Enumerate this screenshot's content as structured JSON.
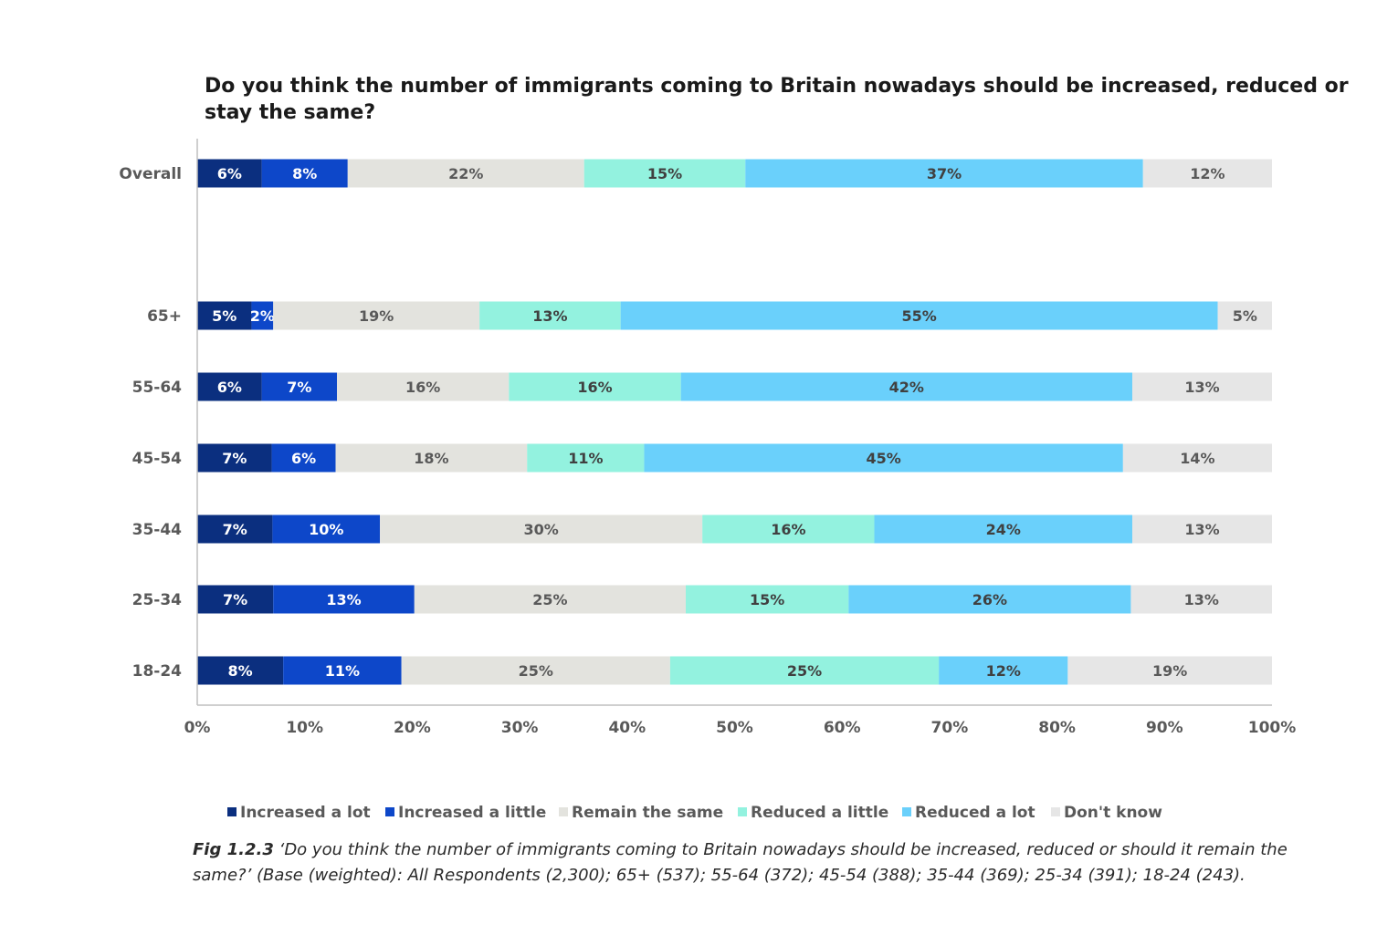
{
  "chart_data": {
    "type": "bar",
    "orientation": "horizontal",
    "stacked": true,
    "title_lines": [
      "Do you think the number of immigrants coming to Britain nowadays should be increased, reduced or",
      "stay the same?"
    ],
    "categories": [
      "Overall",
      "65+",
      "55-64",
      "45-54",
      "35-44",
      "25-34",
      "18-24"
    ],
    "series": [
      {
        "name": "Increased a lot",
        "color": "#0b2f7f",
        "label_color": "#ffffff",
        "values": [
          6,
          5,
          6,
          7,
          7,
          7,
          8
        ],
        "labels": [
          "6%",
          "5%",
          "6%",
          "7%",
          "7%",
          "7%",
          "8%"
        ]
      },
      {
        "name": "Increased a little",
        "color": "#0d47c9",
        "label_color": "#ffffff",
        "values": [
          8,
          2,
          7,
          6,
          10,
          13,
          11
        ],
        "labels": [
          "8%",
          "2%",
          "7%",
          "6%",
          "10%",
          "13%",
          "11%"
        ]
      },
      {
        "name": "Remain the same",
        "color": "#e3e3de",
        "label_color": "#595959",
        "values": [
          22,
          19,
          16,
          18,
          30,
          25,
          25
        ],
        "labels": [
          "22%",
          "19%",
          "16%",
          "18%",
          "30%",
          "25%",
          "25%"
        ]
      },
      {
        "name": "Reduced a little",
        "color": "#93f2df",
        "label_color": "#404040",
        "values": [
          15,
          13,
          16,
          11,
          16,
          15,
          25
        ],
        "labels": [
          "15%",
          "13%",
          "16%",
          "11%",
          "16%",
          "15%",
          "25%"
        ]
      },
      {
        "name": "Reduced a lot",
        "color": "#6ad0fb",
        "label_color": "#404040",
        "values": [
          37,
          55,
          42,
          45,
          24,
          26,
          12
        ],
        "labels": [
          "37%",
          "55%",
          "42%",
          "45%",
          "24%",
          "26%",
          "12%"
        ]
      },
      {
        "name": "Don't know",
        "color": "#e6e6e6",
        "label_color": "#595959",
        "values": [
          12,
          5,
          13,
          14,
          13,
          13,
          19
        ],
        "labels": [
          "12%",
          "5%",
          "13%",
          "14%",
          "13%",
          "13%",
          "19%"
        ]
      }
    ],
    "xlim": [
      0,
      100
    ],
    "x_ticks": [
      "0%",
      "10%",
      "20%",
      "30%",
      "40%",
      "50%",
      "60%",
      "70%",
      "80%",
      "90%",
      "100%"
    ],
    "grid": false,
    "legend_position": "bottom"
  },
  "caption": {
    "fig_label": "Fig 1.2.3",
    "text": " ‘Do you think the number of immigrants coming to Britain nowadays should be increased, reduced or should it remain the same?’ (Base (weighted): All Respondents (2,300); 65+ (537); 55-64 (372); 45-54 (388); 35-44 (369); 25-34 (391); 18-24 (243)."
  }
}
